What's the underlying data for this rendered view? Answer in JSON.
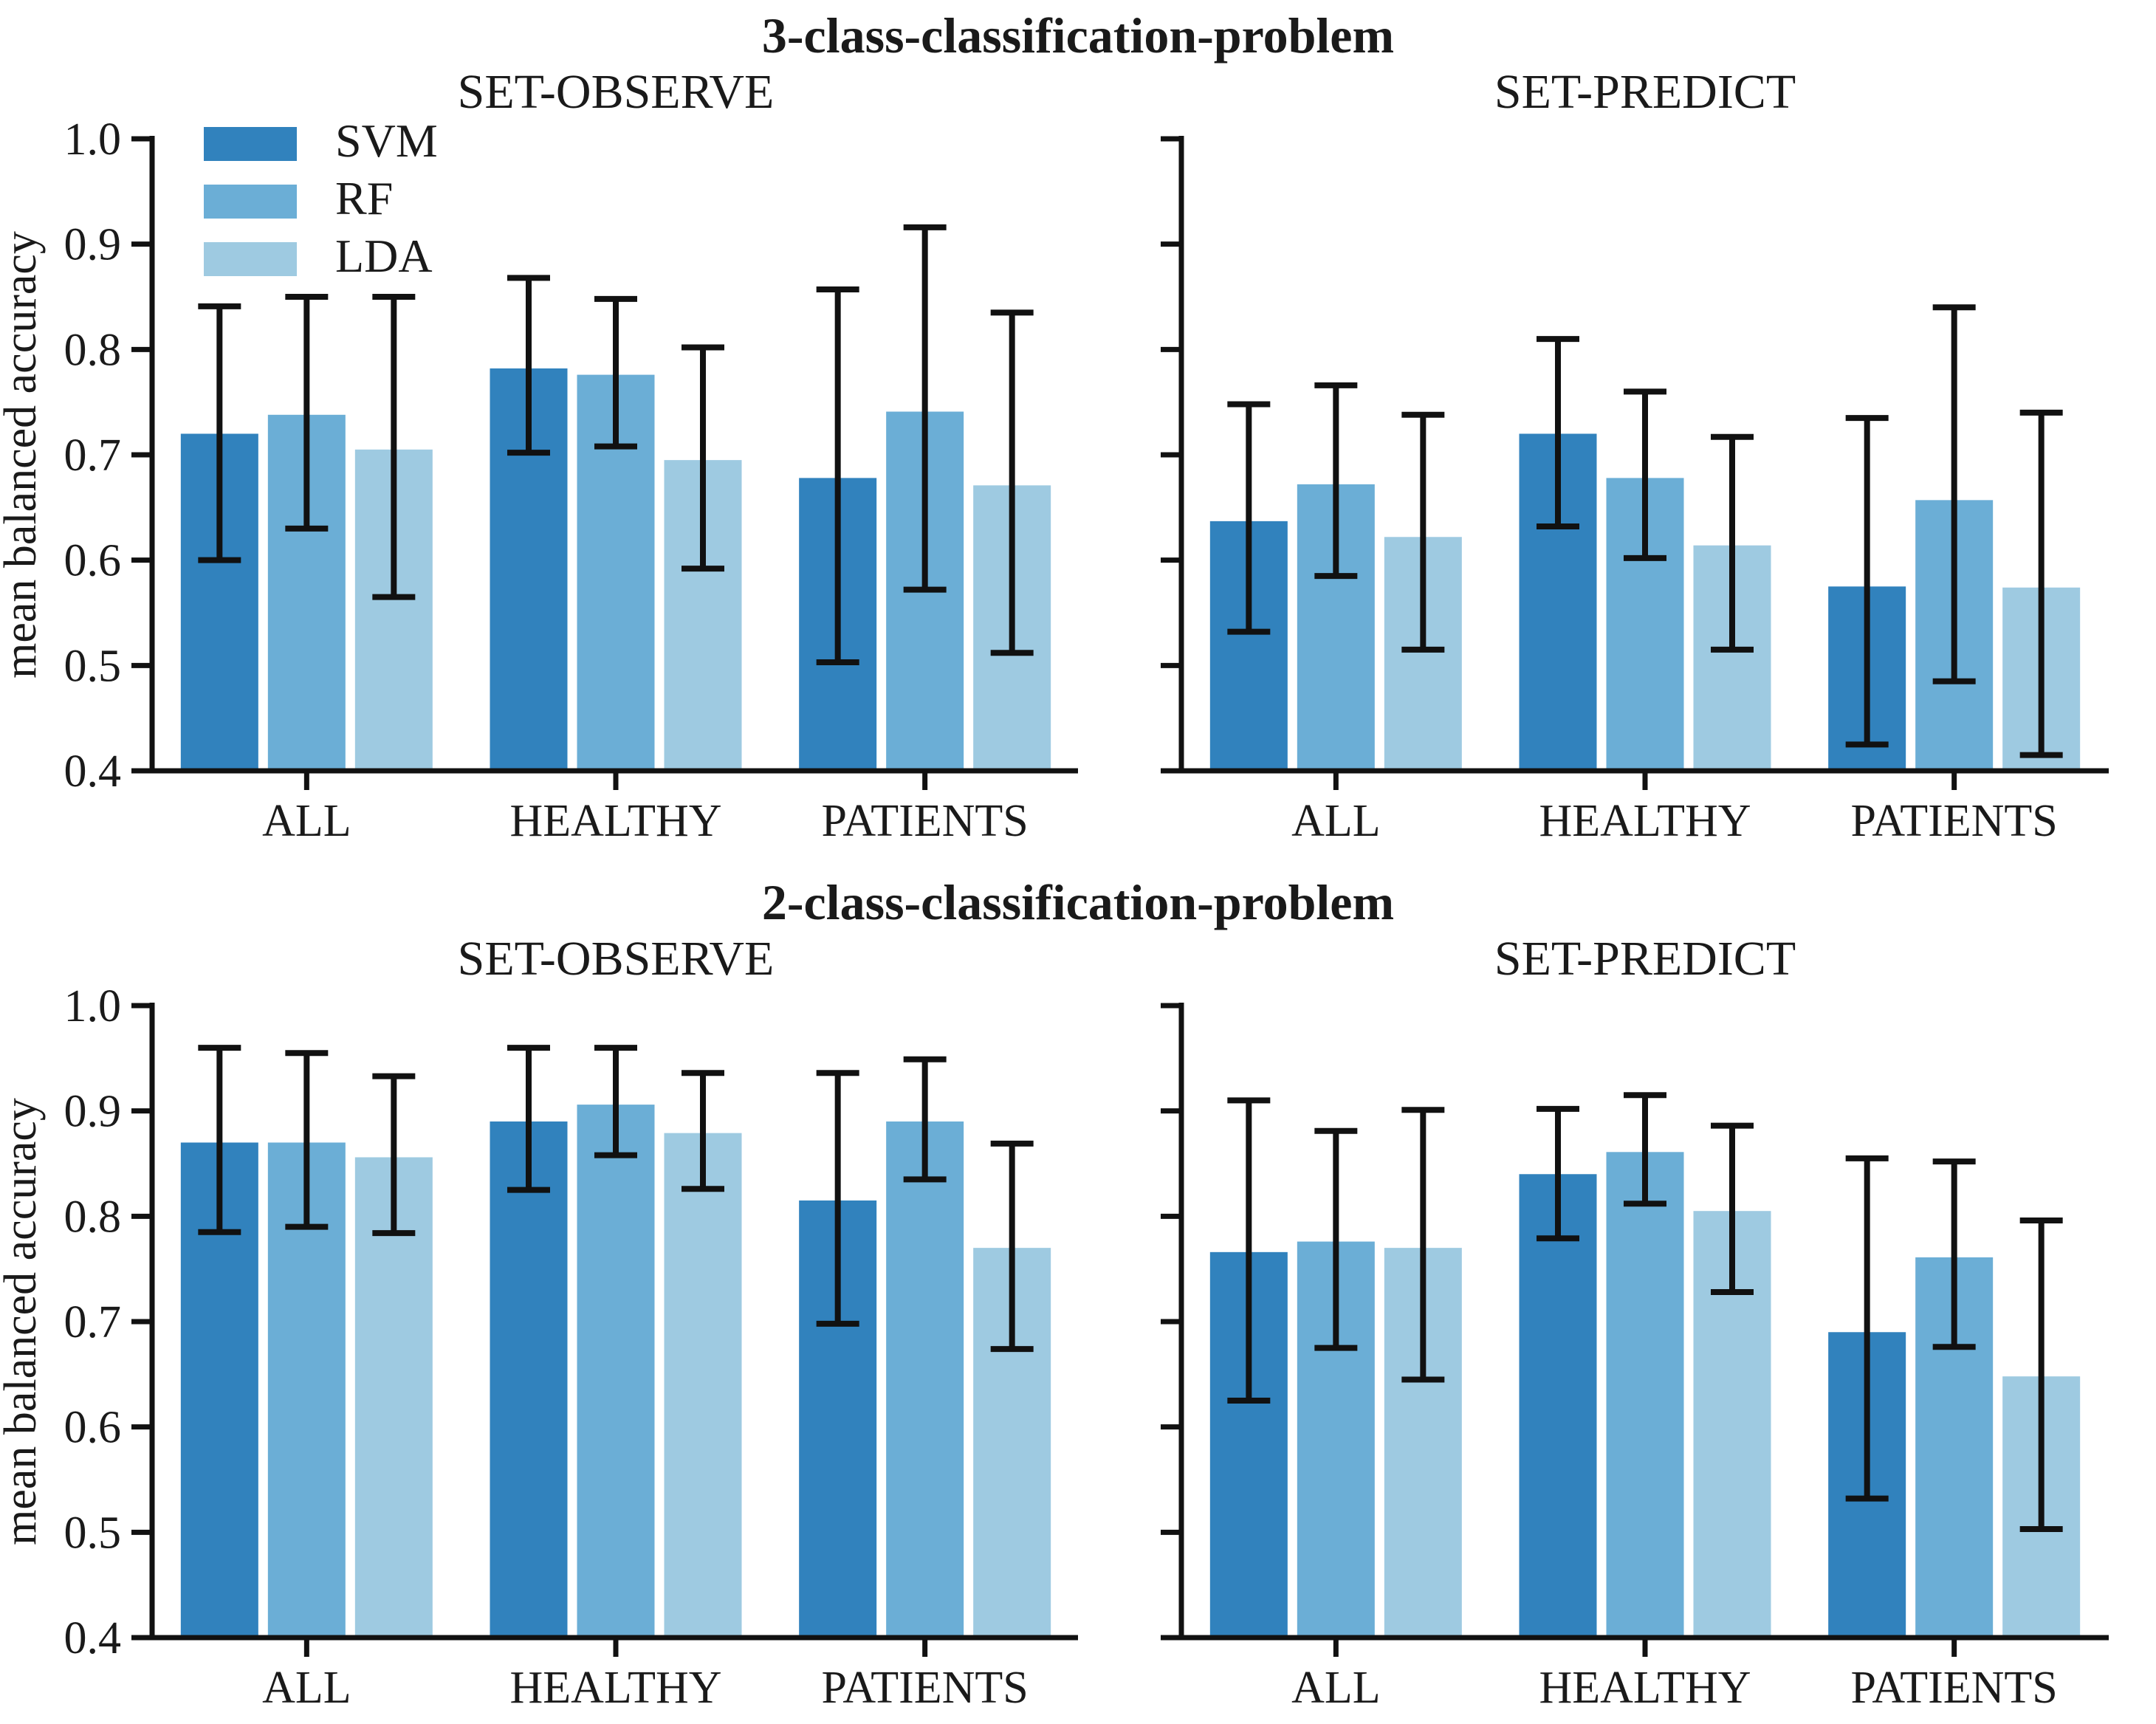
{
  "figure": {
    "background": "#ffffff",
    "text_color": "#1a1a1a",
    "axis_color": "#111111",
    "ylabel": "mean balanced accuracy",
    "legend_entries": [
      "SVM",
      "RF",
      "LDA"
    ],
    "series_colors": {
      "SVM": "#3182bd",
      "RF": "#6baed6",
      "LDA": "#9ecae1"
    },
    "rows": [
      {
        "title": "3-class-classification-problem",
        "chart_indexes": [
          0,
          1
        ]
      },
      {
        "title": "2-class-classification-problem",
        "chart_indexes": [
          2,
          3
        ]
      }
    ]
  },
  "chart_data": [
    {
      "type": "bar",
      "title": "SET-OBSERVE",
      "row": "3-class-classification-problem",
      "categories": [
        "ALL",
        "HEALTHY",
        "PATIENTS"
      ],
      "series": [
        {
          "name": "SVM",
          "color": "#3182bd",
          "values": [
            0.72,
            0.782,
            0.678
          ],
          "err_low": [
            0.6,
            0.702,
            0.503
          ],
          "err_high": [
            0.841,
            0.868,
            0.857
          ]
        },
        {
          "name": "RF",
          "color": "#6baed6",
          "values": [
            0.738,
            0.776,
            0.741
          ],
          "err_low": [
            0.63,
            0.708,
            0.572
          ],
          "err_high": [
            0.85,
            0.848,
            0.916
          ]
        },
        {
          "name": "LDA",
          "color": "#9ecae1",
          "values": [
            0.705,
            0.695,
            0.671
          ],
          "err_low": [
            0.565,
            0.592,
            0.512
          ],
          "err_high": [
            0.85,
            0.802,
            0.835
          ]
        }
      ],
      "ylabel": "mean balanced accuracy",
      "ylim": [
        0.4,
        1.0
      ],
      "yticks": [
        0.4,
        0.5,
        0.6,
        0.7,
        0.8,
        0.9,
        1.0
      ],
      "y_tick_labels_visible": true,
      "legend_visible": true,
      "legend_position": "upper left",
      "grid": false
    },
    {
      "type": "bar",
      "title": "SET-PREDICT",
      "row": "3-class-classification-problem",
      "categories": [
        "ALL",
        "HEALTHY",
        "PATIENTS"
      ],
      "series": [
        {
          "name": "SVM",
          "color": "#3182bd",
          "values": [
            0.637,
            0.72,
            0.575
          ],
          "err_low": [
            0.532,
            0.632,
            0.425
          ],
          "err_high": [
            0.748,
            0.81,
            0.735
          ]
        },
        {
          "name": "RF",
          "color": "#6baed6",
          "values": [
            0.672,
            0.678,
            0.657
          ],
          "err_low": [
            0.585,
            0.602,
            0.485
          ],
          "err_high": [
            0.766,
            0.76,
            0.84
          ]
        },
        {
          "name": "LDA",
          "color": "#9ecae1",
          "values": [
            0.622,
            0.614,
            0.574
          ],
          "err_low": [
            0.515,
            0.515,
            0.415
          ],
          "err_high": [
            0.738,
            0.717,
            0.74
          ]
        }
      ],
      "ylabel": "",
      "ylim": [
        0.4,
        1.0
      ],
      "yticks": [
        0.4,
        0.5,
        0.6,
        0.7,
        0.8,
        0.9,
        1.0
      ],
      "y_tick_labels_visible": false,
      "legend_visible": false,
      "legend_position": "none",
      "grid": false
    },
    {
      "type": "bar",
      "title": "SET-OBSERVE",
      "row": "2-class-classification-problem",
      "categories": [
        "ALL",
        "HEALTHY",
        "PATIENTS"
      ],
      "series": [
        {
          "name": "SVM",
          "color": "#3182bd",
          "values": [
            0.87,
            0.89,
            0.815
          ],
          "err_low": [
            0.785,
            0.825,
            0.698
          ],
          "err_high": [
            0.96,
            0.96,
            0.936
          ]
        },
        {
          "name": "RF",
          "color": "#6baed6",
          "values": [
            0.87,
            0.906,
            0.89
          ],
          "err_low": [
            0.79,
            0.858,
            0.835
          ],
          "err_high": [
            0.955,
            0.96,
            0.949
          ]
        },
        {
          "name": "LDA",
          "color": "#9ecae1",
          "values": [
            0.856,
            0.879,
            0.77
          ],
          "err_low": [
            0.784,
            0.826,
            0.674
          ],
          "err_high": [
            0.933,
            0.936,
            0.869
          ]
        }
      ],
      "ylabel": "mean balanced accuracy",
      "ylim": [
        0.4,
        1.0
      ],
      "yticks": [
        0.4,
        0.5,
        0.6,
        0.7,
        0.8,
        0.9,
        1.0
      ],
      "y_tick_labels_visible": true,
      "legend_visible": false,
      "legend_position": "none",
      "grid": false
    },
    {
      "type": "bar",
      "title": "SET-PREDICT",
      "row": "2-class-classification-problem",
      "categories": [
        "ALL",
        "HEALTHY",
        "PATIENTS"
      ],
      "series": [
        {
          "name": "SVM",
          "color": "#3182bd",
          "values": [
            0.766,
            0.84,
            0.69
          ],
          "err_low": [
            0.625,
            0.779,
            0.532
          ],
          "err_high": [
            0.91,
            0.902,
            0.855
          ]
        },
        {
          "name": "RF",
          "color": "#6baed6",
          "values": [
            0.776,
            0.861,
            0.761
          ],
          "err_low": [
            0.675,
            0.812,
            0.676
          ],
          "err_high": [
            0.881,
            0.915,
            0.852
          ]
        },
        {
          "name": "LDA",
          "color": "#9ecae1",
          "values": [
            0.77,
            0.805,
            0.648
          ],
          "err_low": [
            0.645,
            0.728,
            0.503
          ],
          "err_high": [
            0.901,
            0.886,
            0.796
          ]
        }
      ],
      "ylabel": "",
      "ylim": [
        0.4,
        1.0
      ],
      "yticks": [
        0.4,
        0.5,
        0.6,
        0.7,
        0.8,
        0.9,
        1.0
      ],
      "y_tick_labels_visible": false,
      "legend_visible": false,
      "legend_position": "none",
      "grid": false
    }
  ]
}
